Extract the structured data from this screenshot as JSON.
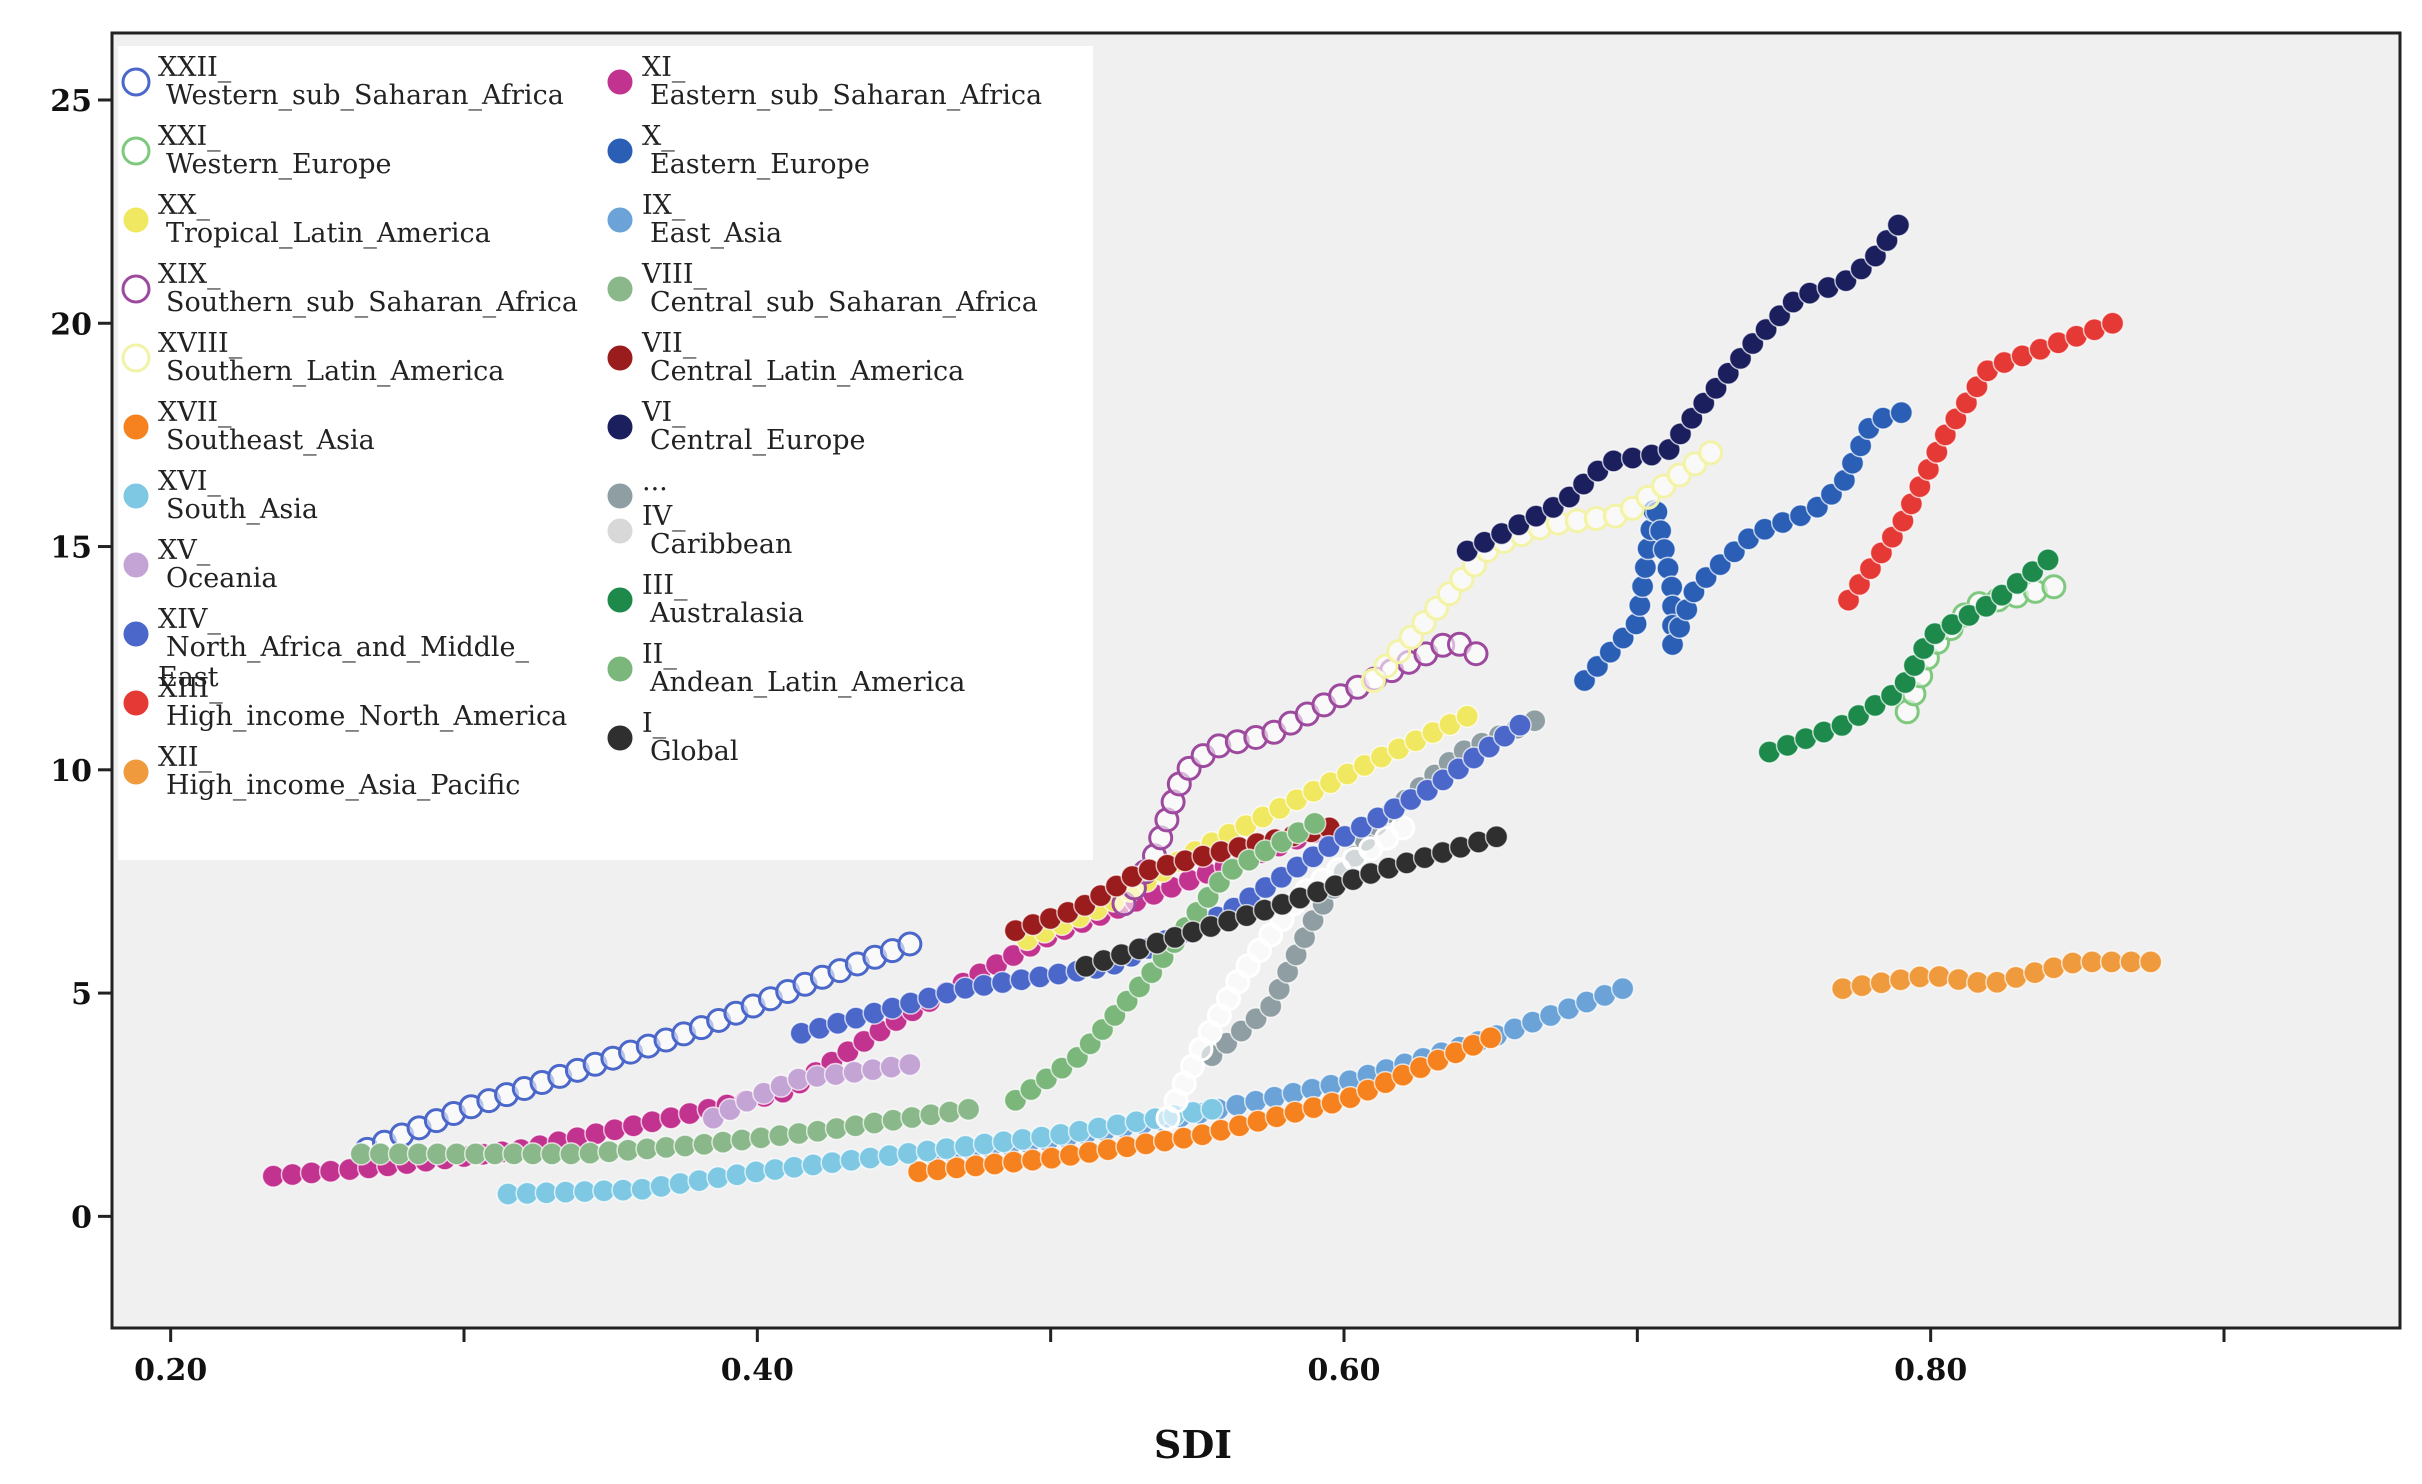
{
  "chart_data": {
    "type": "scatter",
    "title": "",
    "xlabel": "SDI",
    "ylabel": "",
    "xlim": [
      0.18,
      0.96
    ],
    "ylim": [
      -2.5,
      26.5
    ],
    "xticks": [
      0.2,
      0.4,
      0.6,
      0.8
    ],
    "xtick_labels": [
      "0.20",
      "0.40",
      "0.60",
      "0.80"
    ],
    "yticks": [
      0,
      5,
      10,
      15,
      20,
      25
    ],
    "ytick_labels": [
      "0",
      "5",
      "10",
      "15",
      "20",
      "25"
    ],
    "legend_position": "top-left",
    "series": [
      {
        "code": "XXII_",
        "name": "Western_sub_Saharan_Africa",
        "color": "#4a67c9",
        "hollow": true,
        "start": [
          0.267,
          1.5
        ],
        "end": [
          0.452,
          6.1
        ],
        "points": [
          [
            0.267,
            1.5
          ],
          [
            0.3,
            2.4
          ],
          [
            0.34,
            3.3
          ],
          [
            0.38,
            4.2
          ],
          [
            0.42,
            5.3
          ],
          [
            0.452,
            6.1
          ]
        ]
      },
      {
        "code": "XI_",
        "name": "Eastern_sub_Saharan_Africa",
        "color": "#c2338f",
        "hollow": false,
        "start": [
          0.235,
          0.9
        ],
        "end": [
          0.59,
          8.6
        ],
        "points": [
          [
            0.235,
            0.9
          ],
          [
            0.27,
            1.1
          ],
          [
            0.32,
            1.5
          ],
          [
            0.37,
            2.2
          ],
          [
            0.41,
            2.8
          ],
          [
            0.45,
            4.5
          ],
          [
            0.5,
            6.3
          ],
          [
            0.55,
            7.6
          ],
          [
            0.59,
            8.6
          ]
        ]
      },
      {
        "code": "XXI_",
        "name": "Western_Europe",
        "color": "#7fc97f",
        "hollow": true,
        "start": [
          0.792,
          11.3
        ],
        "end": [
          0.842,
          14.1
        ],
        "points": [
          [
            0.792,
            11.3
          ],
          [
            0.8,
            12.7
          ],
          [
            0.815,
            13.7
          ],
          [
            0.83,
            13.9
          ],
          [
            0.842,
            14.1
          ]
        ]
      },
      {
        "code": "X_",
        "name": "Eastern_Europe",
        "color": "#2b5fb5",
        "hollow": false,
        "start": [
          0.682,
          12.0
        ],
        "end": [
          0.79,
          18.0
        ],
        "points": [
          [
            0.682,
            12.0
          ],
          [
            0.7,
            13.3
          ],
          [
            0.706,
            16.0
          ],
          [
            0.712,
            14.0
          ],
          [
            0.712,
            12.8
          ],
          [
            0.72,
            14.1
          ],
          [
            0.74,
            15.3
          ],
          [
            0.76,
            15.8
          ],
          [
            0.77,
            16.4
          ],
          [
            0.78,
            17.8
          ],
          [
            0.79,
            18.0
          ]
        ]
      },
      {
        "code": "XX_",
        "name": "Tropical_Latin_America",
        "color": "#f0e860",
        "hollow": false,
        "start": [
          0.492,
          6.2
        ],
        "end": [
          0.642,
          11.2
        ],
        "points": [
          [
            0.492,
            6.2
          ],
          [
            0.52,
            7.0
          ],
          [
            0.55,
            8.2
          ],
          [
            0.58,
            9.2
          ],
          [
            0.61,
            10.2
          ],
          [
            0.642,
            11.2
          ]
        ]
      },
      {
        "code": "IX_",
        "name": "East_Asia",
        "color": "#6ba3d8",
        "hollow": false,
        "start": [
          0.46,
          1.4
        ],
        "end": [
          0.695,
          5.1
        ],
        "points": [
          [
            0.46,
            1.4
          ],
          [
            0.5,
            1.7
          ],
          [
            0.55,
            2.3
          ],
          [
            0.6,
            3.0
          ],
          [
            0.65,
            4.0
          ],
          [
            0.695,
            5.1
          ]
        ]
      },
      {
        "code": "XIX_",
        "name": "Southern_sub_Saharan_Africa",
        "color": "#9d4a9e",
        "hollow": true,
        "start": [
          0.525,
          7.0
        ],
        "end": [
          0.645,
          12.6
        ],
        "points": [
          [
            0.525,
            7.0
          ],
          [
            0.535,
            8.0
          ],
          [
            0.545,
            9.9
          ],
          [
            0.555,
            10.5
          ],
          [
            0.575,
            10.8
          ],
          [
            0.6,
            11.7
          ],
          [
            0.625,
            12.5
          ],
          [
            0.637,
            12.9
          ],
          [
            0.645,
            12.6
          ]
        ]
      },
      {
        "code": "VIII_",
        "name": "Central_sub_Saharan_Africa",
        "color": "#8ab88a",
        "hollow": false,
        "start": [
          0.265,
          1.4
        ],
        "end": [
          0.472,
          2.4
        ],
        "points": [
          [
            0.265,
            1.4
          ],
          [
            0.3,
            1.4
          ],
          [
            0.34,
            1.4
          ],
          [
            0.38,
            1.6
          ],
          [
            0.42,
            1.9
          ],
          [
            0.472,
            2.4
          ]
        ]
      },
      {
        "code": "XVIII_",
        "name": "Southern_Latin_America",
        "color": "#f3f3a8",
        "hollow": true,
        "start": [
          0.61,
          12.0
        ],
        "end": [
          0.725,
          17.1
        ],
        "points": [
          [
            0.61,
            12.0
          ],
          [
            0.63,
            13.5
          ],
          [
            0.65,
            15.0
          ],
          [
            0.67,
            15.5
          ],
          [
            0.695,
            15.7
          ],
          [
            0.71,
            16.4
          ],
          [
            0.725,
            17.1
          ]
        ]
      },
      {
        "code": "VII_",
        "name": "Central_Latin_America",
        "color": "#9b1c1c",
        "hollow": false,
        "start": [
          0.488,
          6.4
        ],
        "end": [
          0.595,
          8.7
        ],
        "points": [
          [
            0.488,
            6.4
          ],
          [
            0.51,
            6.9
          ],
          [
            0.53,
            7.7
          ],
          [
            0.56,
            8.2
          ],
          [
            0.595,
            8.7
          ]
        ]
      },
      {
        "code": "XVII_",
        "name": "Southeast_Asia",
        "color": "#f5821f",
        "hollow": false,
        "start": [
          0.455,
          1.0
        ],
        "end": [
          0.65,
          4.0
        ],
        "points": [
          [
            0.455,
            1.0
          ],
          [
            0.5,
            1.3
          ],
          [
            0.55,
            1.8
          ],
          [
            0.6,
            2.6
          ],
          [
            0.65,
            4.0
          ]
        ]
      },
      {
        "code": "VI_",
        "name": "Central_Europe",
        "color": "#1b1f5e",
        "hollow": false,
        "start": [
          0.642,
          14.9
        ],
        "end": [
          0.789,
          22.2
        ],
        "points": [
          [
            0.642,
            14.9
          ],
          [
            0.66,
            15.5
          ],
          [
            0.675,
            16.0
          ],
          [
            0.69,
            16.9
          ],
          [
            0.71,
            17.1
          ],
          [
            0.72,
            18.0
          ],
          [
            0.74,
            19.6
          ],
          [
            0.755,
            20.6
          ],
          [
            0.77,
            20.9
          ],
          [
            0.78,
            21.4
          ],
          [
            0.789,
            22.2
          ]
        ]
      },
      {
        "code": "XVI_",
        "name": "South_Asia",
        "color": "#7ec8e3",
        "hollow": false,
        "start": [
          0.315,
          0.5
        ],
        "end": [
          0.555,
          2.4
        ],
        "points": [
          [
            0.315,
            0.5
          ],
          [
            0.36,
            0.6
          ],
          [
            0.4,
            1.0
          ],
          [
            0.45,
            1.4
          ],
          [
            0.5,
            1.8
          ],
          [
            0.555,
            2.4
          ]
        ]
      },
      {
        "code": "...",
        "name": "",
        "color": "#8f9ea2",
        "hollow": false,
        "start": [
          0.555,
          3.6
        ],
        "end": [
          0.665,
          11.1
        ],
        "points": [
          [
            0.555,
            3.6
          ],
          [
            0.575,
            4.7
          ],
          [
            0.59,
            6.7
          ],
          [
            0.61,
            8.7
          ],
          [
            0.64,
            10.4
          ],
          [
            0.665,
            11.1
          ]
        ]
      },
      {
        "code": "XV_",
        "name": "Oceania",
        "color": "#c4a4d4",
        "hollow": false,
        "start": [
          0.385,
          2.2
        ],
        "end": [
          0.452,
          3.4
        ],
        "points": [
          [
            0.385,
            2.2
          ],
          [
            0.4,
            2.7
          ],
          [
            0.415,
            3.1
          ],
          [
            0.43,
            3.2
          ],
          [
            0.452,
            3.4
          ]
        ]
      },
      {
        "code": "IV_",
        "name": "Caribbean",
        "color": "#ffffff",
        "hollow": true,
        "start": [
          0.54,
          2.2
        ],
        "end": [
          0.62,
          8.7
        ],
        "points": [
          [
            0.54,
            2.2
          ],
          [
            0.55,
            3.6
          ],
          [
            0.565,
            5.4
          ],
          [
            0.585,
            7.2
          ],
          [
            0.62,
            8.7
          ]
        ]
      },
      {
        "code": "XIV_",
        "name": "North_Africa_and_Middle_East",
        "color": "#4a67c9",
        "hollow": false,
        "start": [
          0.415,
          4.1
        ],
        "end": [
          0.66,
          11.0
        ],
        "points": [
          [
            0.415,
            4.1
          ],
          [
            0.47,
            5.1
          ],
          [
            0.52,
            5.6
          ],
          [
            0.56,
            6.8
          ],
          [
            0.6,
            8.5
          ],
          [
            0.63,
            9.6
          ],
          [
            0.66,
            11.0
          ]
        ]
      },
      {
        "code": "III_",
        "name": "Australasia",
        "color": "#1d8a4c",
        "hollow": false,
        "start": [
          0.745,
          10.4
        ],
        "end": [
          0.84,
          14.7
        ],
        "points": [
          [
            0.745,
            10.4
          ],
          [
            0.77,
            11.0
          ],
          [
            0.79,
            11.8
          ],
          [
            0.8,
            13.0
          ],
          [
            0.82,
            13.7
          ],
          [
            0.84,
            14.7
          ]
        ]
      },
      {
        "code": "XIII_",
        "name": "High_income_North_America",
        "color": "#e53935",
        "hollow": false,
        "start": [
          0.772,
          13.8
        ],
        "end": [
          0.862,
          20.0
        ],
        "points": [
          [
            0.772,
            13.8
          ],
          [
            0.79,
            15.5
          ],
          [
            0.805,
            17.5
          ],
          [
            0.82,
            19.0
          ],
          [
            0.845,
            19.6
          ],
          [
            0.862,
            20.0
          ]
        ]
      },
      {
        "code": "II_",
        "name": "Andean_Latin_America",
        "color": "#7bb67b",
        "hollow": false,
        "start": [
          0.488,
          2.6
        ],
        "end": [
          0.59,
          8.8
        ],
        "points": [
          [
            0.488,
            2.6
          ],
          [
            0.51,
            3.6
          ],
          [
            0.535,
            5.5
          ],
          [
            0.56,
            7.7
          ],
          [
            0.59,
            8.8
          ]
        ]
      },
      {
        "code": "XII_",
        "name": "High_income_Asia_Pacific",
        "color": "#f09a3e",
        "hollow": false,
        "start": [
          0.77,
          5.1
        ],
        "end": [
          0.875,
          5.7
        ],
        "points": [
          [
            0.77,
            5.1
          ],
          [
            0.8,
            5.4
          ],
          [
            0.82,
            5.2
          ],
          [
            0.85,
            5.7
          ],
          [
            0.875,
            5.7
          ]
        ]
      },
      {
        "code": "I_",
        "name": "Global",
        "color": "#2f2f2f",
        "hollow": false,
        "start": [
          0.512,
          5.6
        ],
        "end": [
          0.652,
          8.5
        ],
        "points": [
          [
            0.512,
            5.6
          ],
          [
            0.54,
            6.2
          ],
          [
            0.575,
            6.9
          ],
          [
            0.61,
            7.7
          ],
          [
            0.652,
            8.5
          ]
        ]
      }
    ]
  },
  "legend": {
    "left": [
      {
        "code": "XXII_",
        "name": "Western_sub_Saharan_Africa",
        "color": "#4a67c9",
        "hollow": true
      },
      {
        "code": "XXI_",
        "name": "Western_Europe",
        "color": "#7fc97f",
        "hollow": true
      },
      {
        "code": "XX_",
        "name": "Tropical_Latin_America",
        "color": "#f0e860",
        "hollow": false
      },
      {
        "code": "XIX_",
        "name": "Southern_sub_Saharan_Africa",
        "color": "#9d4a9e",
        "hollow": true
      },
      {
        "code": "XVIII_",
        "name": "Southern_Latin_America",
        "color": "#f3f3a8",
        "hollow": true
      },
      {
        "code": "XVII_",
        "name": "Southeast_Asia",
        "color": "#f5821f",
        "hollow": false
      },
      {
        "code": "XVI_",
        "name": "South_Asia",
        "color": "#7ec8e3",
        "hollow": false
      },
      {
        "code": "XV_",
        "name": "Oceania",
        "color": "#c4a4d4",
        "hollow": false
      },
      {
        "code": "XIV_",
        "name": "North_Africa_and_Middle_",
        "name2": "East",
        "color": "#4a67c9",
        "hollow": false
      },
      {
        "code": "XIII_",
        "name": "High_income_North_America",
        "color": "#e53935",
        "hollow": false
      },
      {
        "code": "XII_",
        "name": "High_income_Asia_Pacific",
        "color": "#f09a3e",
        "hollow": false
      }
    ],
    "right": [
      {
        "code": "XI_",
        "name": "Eastern_sub_Saharan_Africa",
        "color": "#c2338f",
        "hollow": false
      },
      {
        "code": "X_",
        "name": "Eastern_Europe",
        "color": "#2b5fb5",
        "hollow": false
      },
      {
        "code": "IX_",
        "name": "East_Asia",
        "color": "#6ba3d8",
        "hollow": false
      },
      {
        "code": "VIII_",
        "name": "Central_sub_Saharan_Africa",
        "color": "#8ab88a",
        "hollow": false
      },
      {
        "code": "VII_",
        "name": "Central_Latin_America",
        "color": "#9b1c1c",
        "hollow": false
      },
      {
        "code": "VI_",
        "name": "Central_Europe",
        "color": "#1b1f5e",
        "hollow": false
      },
      {
        "code": "...",
        "name": "",
        "color": "#8f9ea2",
        "hollow": false
      },
      {
        "code": "IV_",
        "name": "Caribbean",
        "color": "#d8d8d8",
        "hollow": false
      },
      {
        "code": "III_",
        "name": "Australasia",
        "color": "#1d8a4c",
        "hollow": false
      },
      {
        "code": "II_",
        "name": "Andean_Latin_America",
        "color": "#7bb67b",
        "hollow": false
      },
      {
        "code": "I_",
        "name": "Global",
        "color": "#2f2f2f",
        "hollow": false
      }
    ]
  }
}
